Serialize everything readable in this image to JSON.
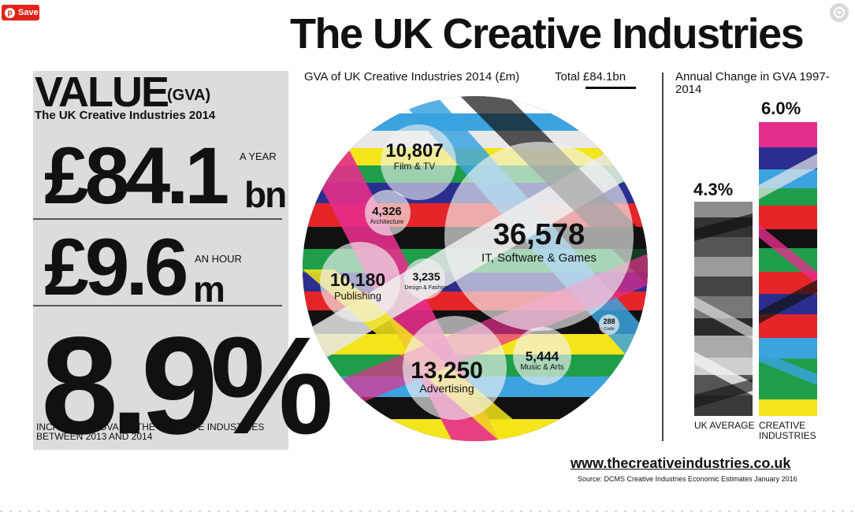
{
  "pinterest": {
    "save_label": "Save",
    "pin_glyph": "p"
  },
  "title": "The UK Creative Industries",
  "value_panel": {
    "heading": "VALUE",
    "heading_suffix": "(GVA)",
    "subheading": "The UK Creative Industries 2014",
    "year": {
      "amount": "£84.1",
      "unit": "bn",
      "label": "A YEAR"
    },
    "hour": {
      "amount": "£9.6",
      "unit": "m",
      "label": "AN HOUR"
    },
    "increase": {
      "amount": "8.9%",
      "caption": "INCREASE IN GVA OF THE CREATIVE INDUSTRIES BETWEEN 2013 AND 2014"
    }
  },
  "gva_chart": {
    "title": "GVA of UK Creative Industries 2014 (£m)",
    "total_label": "Total ",
    "total_value": "£84.1bn",
    "sectors": [
      {
        "value": "36,578",
        "name": "IT, Software & Games"
      },
      {
        "value": "13,250",
        "name": "Advertising"
      },
      {
        "value": "10,807",
        "name": "Film & TV"
      },
      {
        "value": "10,180",
        "name": "Publishing"
      },
      {
        "value": "5,444",
        "name": "Music & Arts"
      },
      {
        "value": "4,326",
        "name": "Architecture"
      },
      {
        "value": "3,235",
        "name": "Design & Fashion"
      },
      {
        "value": "288",
        "name": "Crafts"
      }
    ]
  },
  "annual_change": {
    "title": "Annual Change in GVA 1997-2014",
    "uk_average": {
      "value": "4.3%",
      "label": "UK AVERAGE"
    },
    "creative": {
      "value": "6.0%",
      "label": "CREATIVE INDUSTRIES"
    }
  },
  "footer": {
    "website": "www.thecreativeindustries.co.uk",
    "source": "Source: DCMS Creative Industries Economic Estimates January 2016"
  },
  "colors": {
    "pin_red": "#e2231a",
    "panel_gray": "#dcdcdc"
  }
}
